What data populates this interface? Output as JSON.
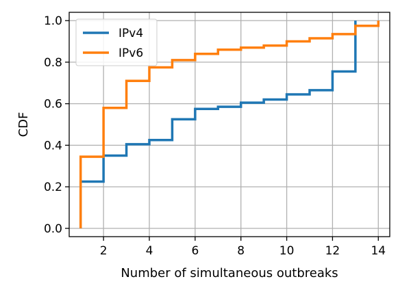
{
  "chart_data": {
    "type": "line",
    "step": true,
    "xlabel": "Number of simultaneous outbreaks",
    "ylabel": "CDF",
    "xlim": [
      0.5,
      14.5
    ],
    "ylim": [
      -0.04,
      1.04
    ],
    "xticks": [
      2,
      4,
      6,
      8,
      10,
      12,
      14
    ],
    "yticks": [
      0.0,
      0.2,
      0.4,
      0.6,
      0.8,
      1.0
    ],
    "ytick_labels": [
      "0.0",
      "0.2",
      "0.4",
      "0.6",
      "0.8",
      "1.0"
    ],
    "grid": true,
    "legend_position": "top-left",
    "series": [
      {
        "name": "IPv4",
        "color": "#1f77b4",
        "x": [
          1,
          2,
          3,
          4,
          5,
          6,
          7,
          8,
          9,
          10,
          11,
          12,
          13
        ],
        "y": [
          0.225,
          0.35,
          0.405,
          0.425,
          0.525,
          0.575,
          0.585,
          0.605,
          0.62,
          0.645,
          0.665,
          0.755,
          1.0
        ]
      },
      {
        "name": "IPv6",
        "color": "#ff7f0e",
        "x": [
          1,
          2,
          3,
          4,
          5,
          6,
          7,
          8,
          9,
          10,
          11,
          12,
          13,
          14
        ],
        "y": [
          0.345,
          0.58,
          0.71,
          0.775,
          0.81,
          0.84,
          0.86,
          0.87,
          0.88,
          0.9,
          0.915,
          0.935,
          0.975,
          1.0
        ]
      }
    ]
  }
}
